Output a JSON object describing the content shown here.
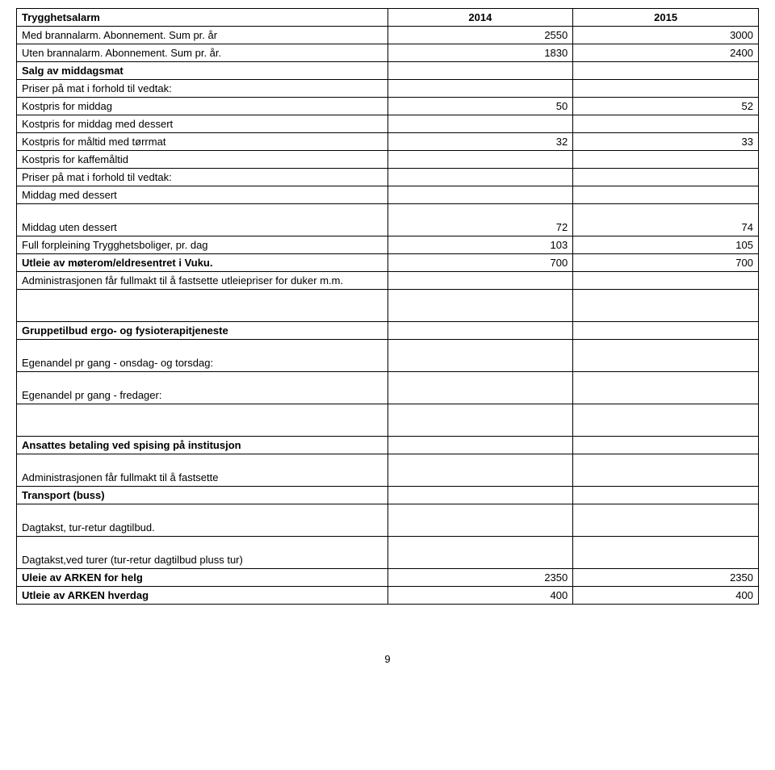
{
  "header": {
    "title": "Trygghetsalarm",
    "year1": "2014",
    "year2": "2015"
  },
  "rows": [
    {
      "label": "Med brannalarm. Abonnement. Sum pr. år",
      "v1": "2550",
      "v2": "3000",
      "bold": false
    },
    {
      "label": "Uten brannalarm. Abonnement. Sum pr. år.",
      "v1": "1830",
      "v2": "2400",
      "bold": false
    },
    {
      "label": "Salg av middagsmat",
      "v1": "",
      "v2": "",
      "bold": true
    },
    {
      "label": "Priser på mat i forhold til vedtak:",
      "v1": "",
      "v2": "",
      "bold": false
    },
    {
      "label": "Kostpris for middag",
      "v1": "50",
      "v2": "52",
      "bold": false
    },
    {
      "label": "Kostpris for middag med dessert",
      "v1": "",
      "v2": "",
      "bold": false
    },
    {
      "label": "Kostpris for måltid med tørrmat",
      "v1": "32",
      "v2": "33",
      "bold": false
    },
    {
      "label": "Kostpris for kaffemåltid",
      "v1": "",
      "v2": "",
      "bold": false
    },
    {
      "label": "Priser på mat i forhold til vedtak:",
      "v1": "",
      "v2": "",
      "bold": false
    },
    {
      "label": "Middag med dessert",
      "v1": "",
      "v2": "",
      "bold": false
    }
  ],
  "row_middag_uten": {
    "label": "Middag uten dessert",
    "v1": "72",
    "v2": "74"
  },
  "rows2": [
    {
      "label": "Full forpleining Trygghetsboliger, pr. dag",
      "v1": "103",
      "v2": "105",
      "bold": false
    },
    {
      "label": "Utleie av møterom/eldresentret i Vuku.",
      "v1": "700",
      "v2": "700",
      "bold": true
    },
    {
      "label": "Administrasjonen får fullmakt til å fastsette utleiepriser for duker m.m.",
      "v1": "",
      "v2": "",
      "bold": false
    }
  ],
  "section_gruppe": {
    "title": "Gruppetilbud ergo- og fysioterapitjeneste",
    "r1": "Egenandel pr gang - onsdag- og torsdag:",
    "r2": "Egenandel pr gang - fredager:"
  },
  "section_ansatte": {
    "title": "Ansattes betaling ved spising på institusjon",
    "r1": "Administrasjonen får fullmakt til å fastsette",
    "transport": "Transport (buss)",
    "dag1": "Dagtakst, tur-retur dagtilbud.",
    "dag2": "Dagtakst,ved turer (tur-retur dagtilbud pluss tur)"
  },
  "arken": [
    {
      "label": "Uleie av ARKEN for helg",
      "v1": "2350",
      "v2": "2350"
    },
    {
      "label": "Utleie av ARKEN hverdag",
      "v1": "400",
      "v2": "400"
    }
  ],
  "page_number": "9"
}
